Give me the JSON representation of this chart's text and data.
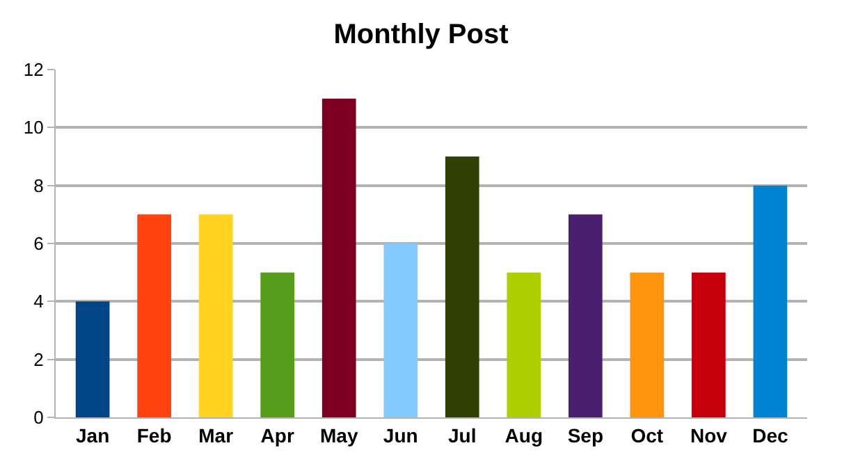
{
  "chart_data": {
    "type": "bar",
    "title": "Monthly Post",
    "categories": [
      "Jan",
      "Feb",
      "Mar",
      "Apr",
      "May",
      "Jun",
      "Jul",
      "Aug",
      "Sep",
      "Oct",
      "Nov",
      "Dec"
    ],
    "values": [
      4,
      7,
      7,
      5,
      11,
      6,
      9,
      5,
      7,
      5,
      5,
      8
    ],
    "colors": [
      "#004586",
      "#ff420e",
      "#ffd320",
      "#579d1c",
      "#7e0021",
      "#83caff",
      "#314004",
      "#aecf00",
      "#4b1f6f",
      "#ff950e",
      "#c5000b",
      "#0084d1"
    ],
    "ylim": [
      0,
      12
    ],
    "yticks": [
      0,
      2,
      4,
      6,
      8,
      10,
      12
    ],
    "grid": "y"
  }
}
